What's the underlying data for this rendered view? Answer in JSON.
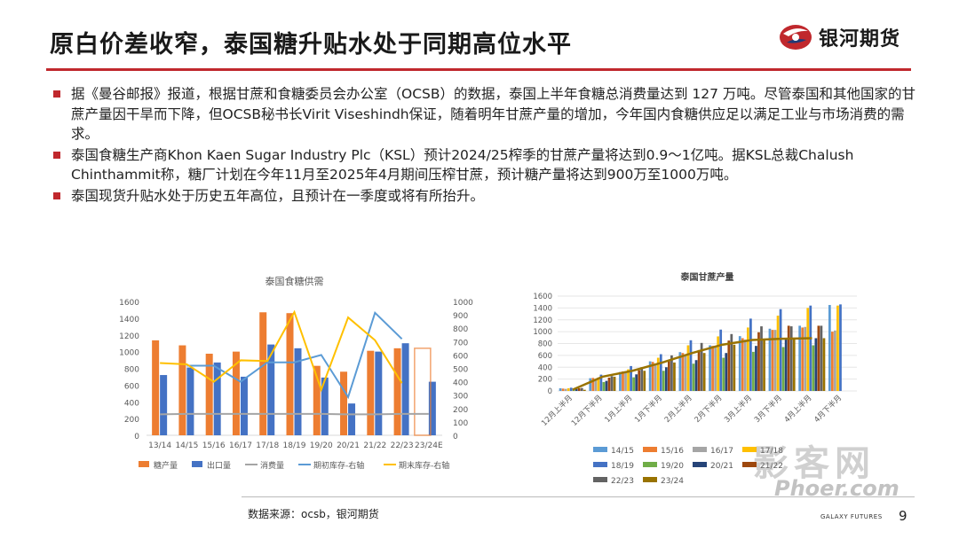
{
  "slide": {
    "title": "原白价差收窄，泰国糖升贴水处于同期高位水平",
    "logo_text": "银河期货",
    "bullets": [
      "据《曼谷邮报》报道，根据甘蔗和食糖委员会办公室（OCSB）的数据，泰国上半年食糖总消费量达到 127 万吨。尽管泰国和其他国家的甘蔗产量因干旱而下降，但OCSB秘书长Virit Viseshindh保证，随着明年甘蔗产量的增加，今年国内食糖供应足以满足工业与市场消费的需求。",
      "泰国食糖生产商Khon Kaen Sugar Industry Plc（KSL）预计2024/25榨季的甘蔗产量将达到0.9～1亿吨。据KSL总裁Chalush Chinthammit称，糖厂计划在今年11月至2025年4月期间压榨甘蔗，预计糖产量将达到900万至1000万吨。",
      "泰国现货升贴水处于历史五年高位，且预计在一季度或将有所抬升。"
    ],
    "source": "数据来源：ocsb，银河期货",
    "footer_brand": "GALAXY FUTURES",
    "page_number": "9",
    "watermark": "影客网",
    "watermark_sub": "Phoer.com",
    "brand_color": "#c0282d"
  },
  "chart_data": [
    {
      "type": "bar",
      "title": "泰国食糖供需",
      "categories": [
        "13/14",
        "14/15",
        "15/16",
        "16/17",
        "17/18",
        "18/19",
        "19/20",
        "20/21",
        "21/22",
        "22/23",
        "23/24E"
      ],
      "ylim": [
        0,
        1600
      ],
      "y_ticks": [
        0,
        200,
        400,
        600,
        800,
        1000,
        1200,
        1400,
        1600
      ],
      "y2lim": [
        0,
        1000
      ],
      "y2_ticks": [
        0,
        100,
        200,
        300,
        400,
        500,
        600,
        700,
        800,
        900,
        1000
      ],
      "series": [
        {
          "name": "糖产量",
          "kind": "bar",
          "axis": "left",
          "color": "#ed7d31",
          "values": [
            1135,
            1075,
            975,
            1000,
            1470,
            1460,
            830,
            760,
            1010,
            1040,
            null
          ]
        },
        {
          "name": "出口量",
          "kind": "bar",
          "axis": "left",
          "color": "#4472c4",
          "values": [
            720,
            810,
            870,
            700,
            1085,
            1040,
            690,
            380,
            1000,
            1100,
            640
          ]
        },
        {
          "name": "消费量",
          "kind": "line",
          "axis": "left",
          "color": "#a5a5a5",
          "values": [
            250,
            255,
            255,
            255,
            255,
            255,
            255,
            250,
            250,
            255,
            255
          ]
        },
        {
          "name": "期初库存-右轴",
          "kind": "line",
          "axis": "right",
          "color": "#5b9bd5",
          "values": [
            null,
            520,
            520,
            400,
            545,
            545,
            600,
            285,
            915,
            720,
            null
          ]
        },
        {
          "name": "期末库存-右轴",
          "kind": "line",
          "axis": "right",
          "color": "#ffc000",
          "values": [
            540,
            530,
            400,
            560,
            555,
            920,
            340,
            880,
            710,
            390,
            null
          ]
        }
      ]
    },
    {
      "type": "bar",
      "title": "泰国甘蔗产量",
      "categories": [
        "12月上半月",
        "12月下半月",
        "1月上半月",
        "1月下半月",
        "2月上半月",
        "2月下半月",
        "3月上半月",
        "3月下半月",
        "4月上半月",
        "4月下半月"
      ],
      "ylim": [
        0,
        1600
      ],
      "y_ticks": [
        0,
        200,
        400,
        600,
        800,
        1000,
        1200,
        1400,
        1600
      ],
      "series": [
        {
          "name": "14/15",
          "color": "#5b9bd5",
          "values": [
            45,
            215,
            320,
            500,
            655,
            770,
            925,
            1050,
            1100,
            1450
          ]
        },
        {
          "name": "15/16",
          "color": "#ed7d31",
          "values": [
            40,
            220,
            330,
            490,
            640,
            760,
            890,
            1030,
            1070,
            1000
          ]
        },
        {
          "name": "16/17",
          "color": "#a5a5a5",
          "values": [
            35,
            205,
            305,
            455,
            615,
            745,
            865,
            1030,
            1080,
            1020
          ]
        },
        {
          "name": "17/18",
          "color": "#ffc000",
          "values": [
            45,
            225,
            365,
            560,
            770,
            920,
            1070,
            1270,
            1400,
            1440
          ]
        },
        {
          "name": "18/19",
          "color": "#4472c4",
          "values": [
            55,
            275,
            420,
            620,
            855,
            1035,
            1220,
            1380,
            1440,
            1460
          ]
        },
        {
          "name": "19/20",
          "color": "#70ad47",
          "values": [
            30,
            150,
            230,
            340,
            460,
            560,
            660,
            740,
            770,
            null
          ]
        },
        {
          "name": "20/21",
          "color": "#264478",
          "values": [
            35,
            170,
            280,
            400,
            520,
            640,
            760,
            890,
            890,
            null
          ]
        },
        {
          "name": "21/22",
          "color": "#9e480e",
          "values": [
            45,
            225,
            350,
            500,
            690,
            850,
            990,
            1100,
            1100,
            null
          ]
        },
        {
          "name": "22/23",
          "color": "#636363",
          "values": [
            50,
            250,
            400,
            600,
            810,
            960,
            1090,
            1090,
            1100,
            null
          ]
        },
        {
          "name": "23/24",
          "color": "#997300",
          "values": [
            20,
            240,
            340,
            480,
            640,
            780,
            860,
            880,
            890,
            null
          ]
        }
      ]
    }
  ]
}
